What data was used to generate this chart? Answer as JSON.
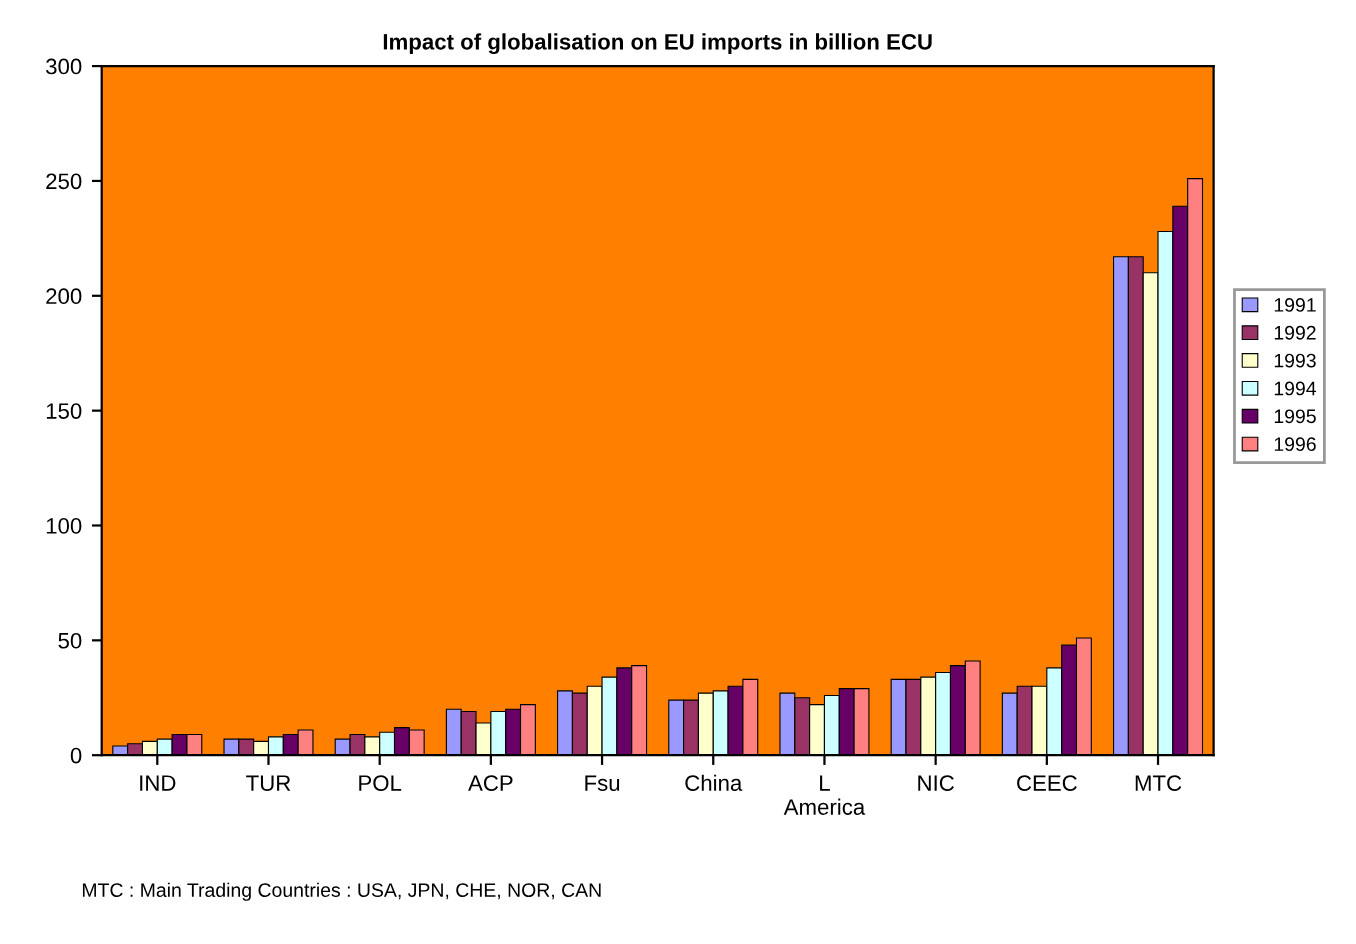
{
  "chart_data": {
    "type": "bar",
    "title": "Impact of globalisation on EU imports in billion ECU",
    "categories": [
      "IND",
      "TUR",
      "POL",
      "ACP",
      "Fsu",
      "China",
      "L\nAmerica",
      "NIC",
      "CEEC",
      "MTC"
    ],
    "series": [
      {
        "name": "1991",
        "color": "#9999ff",
        "values": [
          4,
          7,
          7,
          20,
          28,
          24,
          27,
          33,
          27,
          217
        ]
      },
      {
        "name": "1992",
        "color": "#993366",
        "values": [
          5,
          7,
          9,
          19,
          27,
          24,
          25,
          33,
          30,
          217
        ]
      },
      {
        "name": "1993",
        "color": "#ffffcc",
        "values": [
          6,
          6,
          8,
          14,
          30,
          27,
          22,
          34,
          30,
          210
        ]
      },
      {
        "name": "1994",
        "color": "#ccffff",
        "values": [
          7,
          8,
          10,
          19,
          34,
          28,
          26,
          36,
          38,
          228
        ]
      },
      {
        "name": "1995",
        "color": "#660066",
        "values": [
          9,
          9,
          12,
          20,
          38,
          30,
          29,
          39,
          48,
          239
        ]
      },
      {
        "name": "1996",
        "color": "#ff8080",
        "values": [
          9,
          11,
          11,
          22,
          39,
          33,
          29,
          41,
          51,
          251
        ]
      }
    ],
    "ylim": [
      0,
      300
    ],
    "yticks": [
      0,
      50,
      100,
      150,
      200,
      250,
      300
    ],
    "grid": false,
    "legend": "right",
    "annotations": [
      "MTC : Main Trading Countries : USA, JPN, CHE, NOR, CAN"
    ]
  }
}
